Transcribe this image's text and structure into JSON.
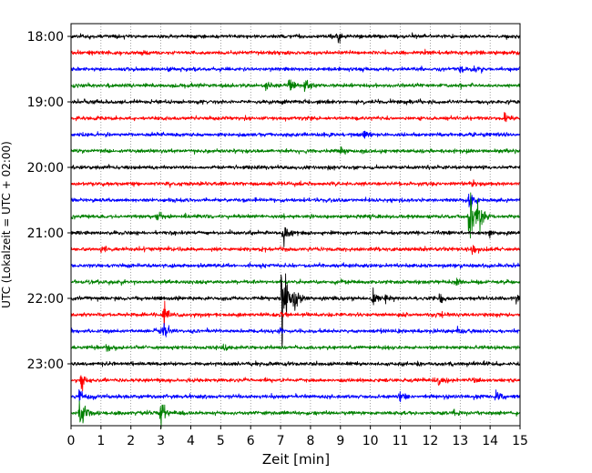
{
  "chart_data": {
    "type": "line",
    "title": "",
    "xlabel": "Zeit  [min]",
    "ylabel": "UTC (Lokalzeit = UTC + 02:00)",
    "xlim": [
      0,
      15
    ],
    "x_ticks": [
      "0",
      "1",
      "2",
      "3",
      "4",
      "5",
      "6",
      "7",
      "8",
      "9",
      "10",
      "11",
      "12",
      "13",
      "14",
      "15"
    ],
    "y_ticks": [
      "18:00",
      "19:00",
      "20:00",
      "21:00",
      "22:00",
      "23:00"
    ],
    "grid": true,
    "legend": "none",
    "trace_colors": [
      "#000000",
      "#ff0000",
      "#0000ff",
      "#008000"
    ],
    "traces": [
      {
        "start": "18:00",
        "color": "#000000",
        "events": [
          {
            "t": 8.9,
            "amp": 6
          }
        ]
      },
      {
        "start": "18:15",
        "color": "#ff0000",
        "events": []
      },
      {
        "start": "18:30",
        "color": "#0000ff",
        "events": [
          {
            "t": 13.0,
            "amp": 4
          },
          {
            "t": 13.5,
            "amp": 3
          }
        ]
      },
      {
        "start": "18:45",
        "color": "#008000",
        "events": [
          {
            "t": 6.5,
            "amp": 5
          },
          {
            "t": 7.3,
            "amp": 6
          },
          {
            "t": 7.8,
            "amp": 8
          }
        ]
      },
      {
        "start": "19:00",
        "color": "#000000",
        "events": []
      },
      {
        "start": "19:15",
        "color": "#ff0000",
        "events": [
          {
            "t": 14.5,
            "amp": 6
          }
        ]
      },
      {
        "start": "19:30",
        "color": "#0000ff",
        "events": [
          {
            "t": 9.8,
            "amp": 4
          }
        ]
      },
      {
        "start": "19:45",
        "color": "#008000",
        "events": [
          {
            "t": 9.0,
            "amp": 3
          }
        ]
      },
      {
        "start": "20:00",
        "color": "#000000",
        "events": []
      },
      {
        "start": "20:15",
        "color": "#ff0000",
        "events": [
          {
            "t": 13.4,
            "amp": 3
          }
        ]
      },
      {
        "start": "20:30",
        "color": "#0000ff",
        "events": [
          {
            "t": 13.3,
            "amp": 8
          }
        ]
      },
      {
        "start": "20:45",
        "color": "#008000",
        "events": [
          {
            "t": 2.9,
            "amp": 5
          },
          {
            "t": 13.3,
            "amp": 34
          },
          {
            "t": 13.6,
            "amp": 14
          }
        ]
      },
      {
        "start": "21:00",
        "color": "#000000",
        "events": [
          {
            "t": 7.1,
            "amp": 12
          },
          {
            "t": 14.0,
            "amp": 3
          }
        ]
      },
      {
        "start": "21:15",
        "color": "#ff0000",
        "events": [
          {
            "t": 1.0,
            "amp": 4
          },
          {
            "t": 13.4,
            "amp": 4
          }
        ]
      },
      {
        "start": "21:30",
        "color": "#0000ff",
        "events": []
      },
      {
        "start": "21:45",
        "color": "#008000",
        "events": [
          {
            "t": 12.9,
            "amp": 3
          }
        ]
      },
      {
        "start": "22:00",
        "color": "#000000",
        "events": [
          {
            "t": 7.05,
            "amp": 60
          },
          {
            "t": 7.45,
            "amp": 16
          },
          {
            "t": 10.1,
            "amp": 7
          },
          {
            "t": 10.5,
            "amp": 4
          },
          {
            "t": 12.3,
            "amp": 4
          },
          {
            "t": 14.9,
            "amp": 4
          }
        ]
      },
      {
        "start": "22:15",
        "color": "#ff0000",
        "events": [
          {
            "t": 3.1,
            "amp": 11
          },
          {
            "t": 7.0,
            "amp": 3
          },
          {
            "t": 12.2,
            "amp": 3
          }
        ]
      },
      {
        "start": "22:30",
        "color": "#0000ff",
        "events": [
          {
            "t": 2.8,
            "amp": 4
          },
          {
            "t": 3.1,
            "amp": 6
          },
          {
            "t": 7.0,
            "amp": 3
          },
          {
            "t": 12.9,
            "amp": 3
          }
        ]
      },
      {
        "start": "22:45",
        "color": "#008000",
        "events": [
          {
            "t": 1.2,
            "amp": 4
          },
          {
            "t": 5.1,
            "amp": 3
          }
        ]
      },
      {
        "start": "23:00",
        "color": "#000000",
        "events": []
      },
      {
        "start": "23:15",
        "color": "#ff0000",
        "events": [
          {
            "t": 0.35,
            "amp": 10
          },
          {
            "t": 12.3,
            "amp": 4
          },
          {
            "t": 13.4,
            "amp": 3
          }
        ]
      },
      {
        "start": "23:30",
        "color": "#0000ff",
        "events": [
          {
            "t": 0.3,
            "amp": 8
          },
          {
            "t": 11.0,
            "amp": 5
          },
          {
            "t": 14.2,
            "amp": 5
          }
        ]
      },
      {
        "start": "23:45",
        "color": "#008000",
        "events": [
          {
            "t": 0.3,
            "amp": 26
          },
          {
            "t": 3.0,
            "amp": 12
          },
          {
            "t": 12.7,
            "amp": 4
          }
        ]
      }
    ]
  }
}
